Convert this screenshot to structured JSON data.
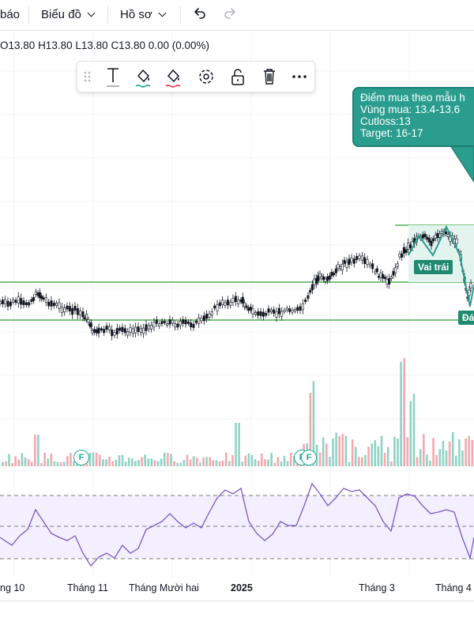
{
  "toolbar": {
    "item_partial": "báo",
    "chart_menu": "Biểu đồ",
    "profile_menu": "Hồ sơ"
  },
  "ohlc": {
    "o": "O13.80",
    "h": "H13.80",
    "l": "L13.80",
    "c": "C13.80",
    "change": "0.00 (0.00%)"
  },
  "drawing_toolbar": {
    "icons": [
      "drag-handle-icon",
      "text-icon",
      "fill-color-icon",
      "line-color-icon",
      "settings-icon",
      "unlock-icon",
      "trash-icon",
      "more-icon"
    ]
  },
  "callout": {
    "line1": "Điểm mua theo mẫu h",
    "line2": "Vùng mua: 13.4-13.6",
    "line3": "Cutloss:13",
    "line4": "Target: 16-17"
  },
  "labels": {
    "left_shoulder": "Vai trái",
    "bottom_partial": "Đá"
  },
  "events": {
    "f_badge": "F"
  },
  "x_axis": {
    "ticks": [
      "ng 10",
      "Tháng 11",
      "Tháng Mười hai",
      "2025",
      "Tháng 3",
      "Tháng 4"
    ]
  },
  "colors": {
    "up": "#22ab94",
    "down": "#f23645",
    "support_line": "#4caf50",
    "rsi": "#7e57c2",
    "callout_bg": "#2a9d8f"
  }
}
